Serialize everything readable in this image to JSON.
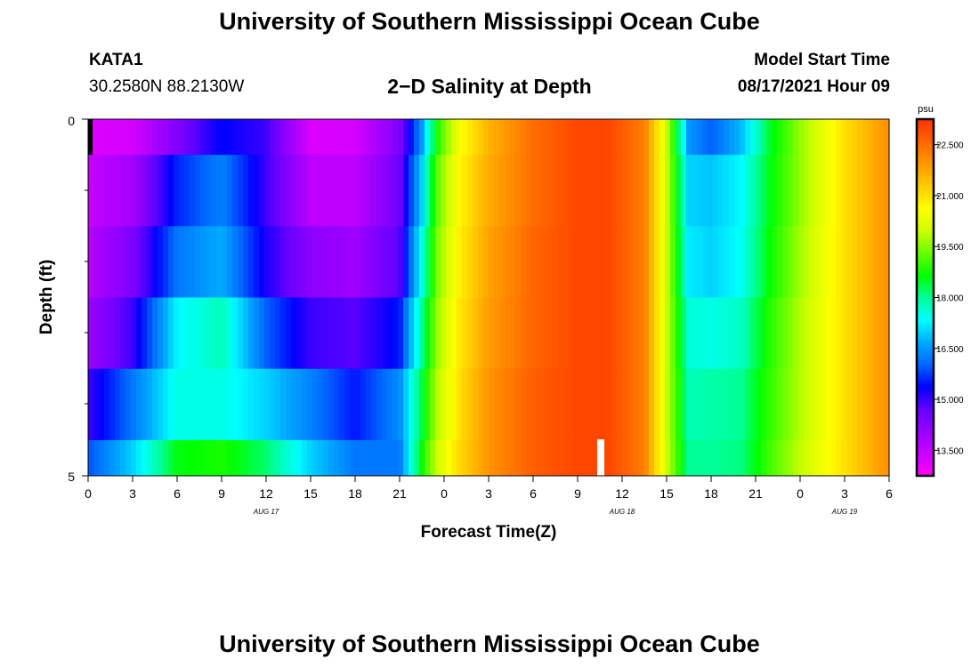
{
  "page": {
    "title_top": "University of Southern Mississippi Ocean Cube",
    "title_bottom": "University of Southern Mississippi Ocean Cube",
    "station_id": "KATA1",
    "station_coords": "30.2580N  88.2130W",
    "plot_title": "2−D Salinity at Depth",
    "model_start_label": "Model Start Time",
    "model_start_value": "08/17/2021 Hour 09"
  },
  "chart_data": {
    "type": "heatmap",
    "title": "2−D Salinity at Depth",
    "xlabel": "Forecast Time(Z)",
    "ylabel": "Depth (ft)",
    "y_tick_labels": [
      "0",
      "5"
    ],
    "ylim": [
      0,
      5
    ],
    "x_tick_labels": [
      "0",
      "3",
      "6",
      "9",
      "12",
      "15",
      "18",
      "21",
      "0",
      "3",
      "6",
      "9",
      "12",
      "15",
      "18",
      "21",
      "0",
      "3",
      "6"
    ],
    "x_date_labels": [
      {
        "label": "AUG 17",
        "hour": 12
      },
      {
        "label": "AUG 18",
        "hour": 36
      },
      {
        "label": "AUG 19",
        "hour": 51
      }
    ],
    "xlim_hours": [
      0,
      54
    ],
    "depth_layers": [
      "0-0.5",
      "0.5-1.5",
      "1.5-2.5",
      "2.5-3.5",
      "3.5-4.5",
      "4.5-5"
    ],
    "colorbar": {
      "unit": "psu",
      "range": [
        12.75,
        23.25
      ],
      "tick_values": [
        13.5,
        15.0,
        16.5,
        18.0,
        19.5,
        21.0,
        22.5
      ],
      "tick_labels": [
        "13.500",
        "15.000",
        "16.500",
        "18.000",
        "19.500",
        "21.000",
        "22.500"
      ],
      "colors": [
        "#ff00ff",
        "#cc00ff",
        "#9900ff",
        "#6600ff",
        "#0000ff",
        "#0066ff",
        "#00aaff",
        "#00ffff",
        "#00ff99",
        "#00ff00",
        "#66ff00",
        "#ccff00",
        "#ffff00",
        "#ffcc00",
        "#ff9900",
        "#ff6600",
        "#ff3300"
      ]
    },
    "profile_keys": {
      "hours": [
        0,
        3,
        6,
        9,
        12,
        15,
        18,
        21,
        22.5,
        23.5,
        25,
        27,
        30,
        33,
        35,
        37.5,
        39,
        40.5,
        42,
        44,
        46,
        48,
        51,
        54
      ],
      "layers": [
        [
          13.2,
          13.3,
          14.4,
          15.4,
          15.0,
          13.2,
          13.3,
          14.4,
          16.5,
          18.8,
          20.5,
          21.6,
          22.5,
          23.0,
          23.0,
          22.3,
          20.0,
          16.5,
          16.0,
          16.8,
          18.5,
          19.6,
          21.0,
          22.1
        ],
        [
          13.5,
          13.9,
          15.6,
          16.3,
          15.0,
          13.6,
          13.6,
          14.6,
          17.0,
          19.2,
          20.7,
          21.7,
          22.5,
          23.0,
          23.0,
          22.3,
          20.0,
          17.0,
          16.9,
          17.3,
          18.6,
          19.6,
          21.0,
          22.1
        ],
        [
          13.7,
          14.4,
          16.2,
          16.7,
          15.2,
          14.2,
          14.0,
          14.8,
          17.5,
          19.4,
          20.8,
          21.8,
          22.6,
          23.0,
          23.0,
          22.3,
          20.0,
          17.2,
          17.0,
          17.4,
          18.7,
          19.7,
          21.0,
          22.1
        ],
        [
          14.0,
          15.0,
          17.3,
          17.8,
          16.0,
          15.0,
          14.8,
          15.5,
          18.0,
          19.6,
          20.9,
          21.9,
          22.6,
          23.0,
          23.0,
          22.3,
          20.0,
          17.6,
          17.5,
          17.7,
          18.9,
          19.8,
          21.0,
          22.1
        ],
        [
          15.0,
          16.2,
          17.5,
          17.5,
          17.0,
          16.3,
          15.5,
          16.4,
          18.4,
          19.8,
          21.0,
          22.0,
          22.7,
          23.0,
          23.0,
          22.3,
          20.0,
          17.8,
          17.9,
          18.0,
          19.0,
          19.8,
          21.0,
          22.1
        ],
        [
          15.9,
          17.0,
          18.6,
          18.8,
          18.2,
          17.0,
          16.2,
          16.2,
          18.7,
          20.0,
          21.1,
          22.0,
          22.7,
          23.0,
          23.0,
          22.3,
          20.0,
          18.0,
          18.0,
          18.1,
          19.1,
          19.9,
          21.0,
          22.1
        ]
      ]
    }
  }
}
